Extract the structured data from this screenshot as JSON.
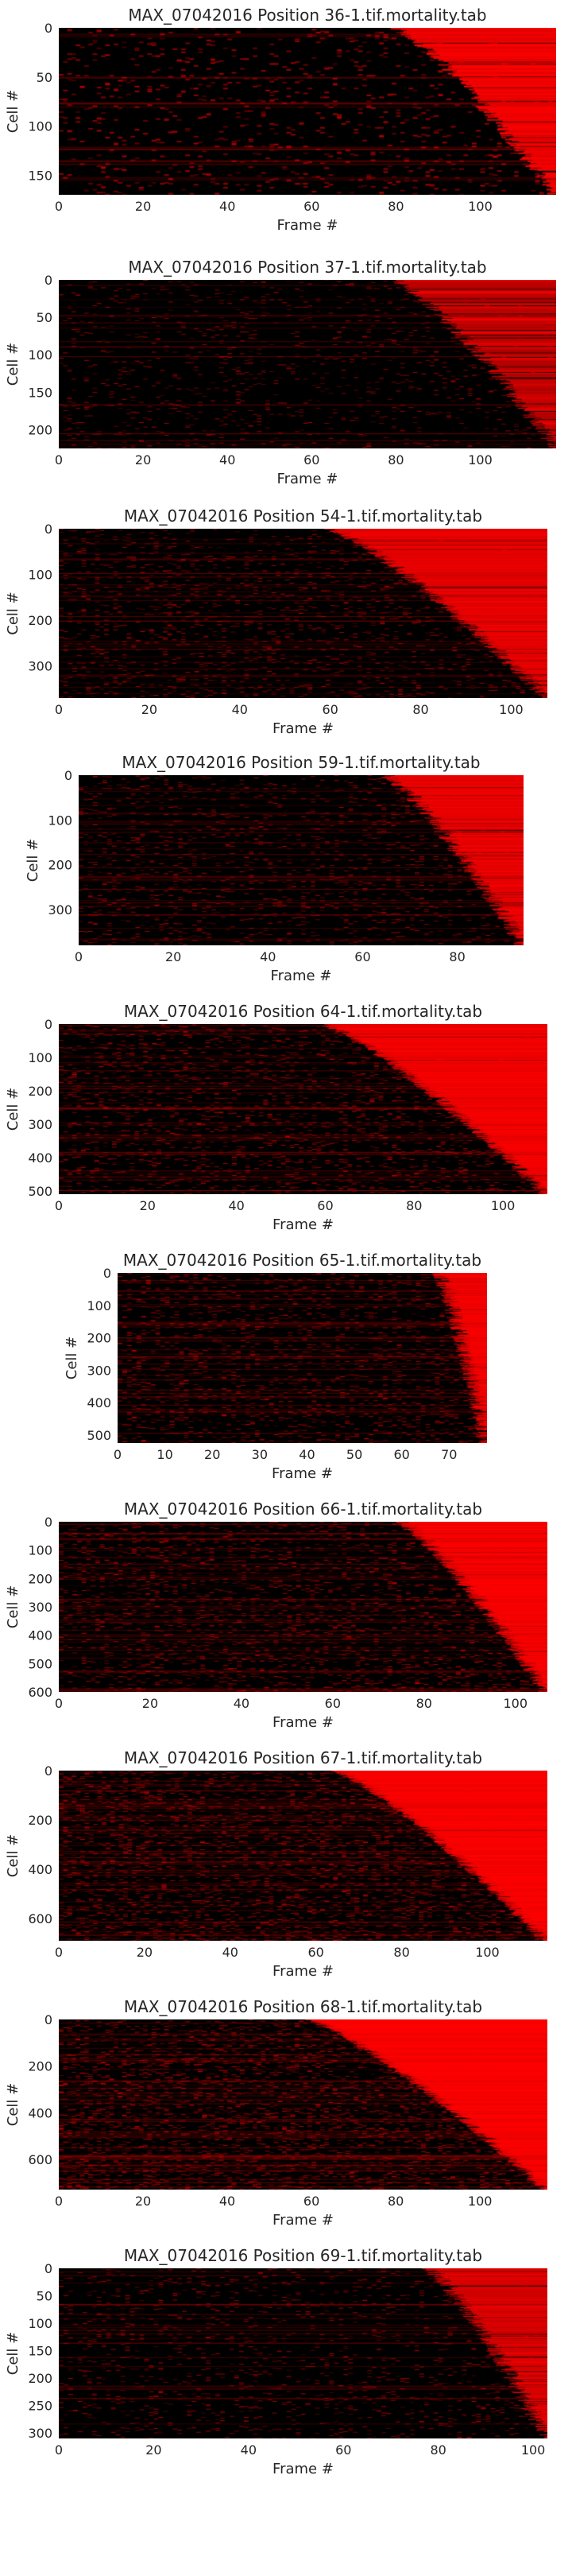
{
  "figure": {
    "panels": [
      {
        "title": "MAX_07042016 Position 36-1.tif.mortality.tab",
        "xlabel": "Frame #",
        "ylabel": "Cell #"
      },
      {
        "title": "MAX_07042016 Position 37-1.tif.mortality.tab",
        "xlabel": "Frame #",
        "ylabel": "Cell #"
      },
      {
        "title": "MAX_07042016 Position 54-1.tif.mortality.tab",
        "xlabel": "Frame #",
        "ylabel": "Cell #"
      },
      {
        "title": "MAX_07042016 Position 59-1.tif.mortality.tab",
        "xlabel": "Frame #",
        "ylabel": "Cell #"
      },
      {
        "title": "MAX_07042016 Position 64-1.tif.mortality.tab",
        "xlabel": "Frame #",
        "ylabel": "Cell #"
      },
      {
        "title": "MAX_07042016 Position 65-1.tif.mortality.tab",
        "xlabel": "Frame #",
        "ylabel": "Cell #"
      },
      {
        "title": "MAX_07042016 Position 66-1.tif.mortality.tab",
        "xlabel": "Frame #",
        "ylabel": "Cell #"
      },
      {
        "title": "MAX_07042016 Position 67-1.tif.mortality.tab",
        "xlabel": "Frame #",
        "ylabel": "Cell #"
      },
      {
        "title": "MAX_07042016 Position 68-1.tif.mortality.tab",
        "xlabel": "Frame #",
        "ylabel": "Cell #"
      },
      {
        "title": "MAX_07042016 Position 69-1.tif.mortality.tab",
        "xlabel": "Frame #",
        "ylabel": "Cell #"
      }
    ]
  },
  "chart_data": [
    {
      "type": "heatmap",
      "title": "MAX_07042016 Position 36-1.tif.mortality.tab",
      "xlabel": "Frame #",
      "ylabel": "Cell #",
      "frames": 118,
      "cells": 170,
      "xlim": [
        0,
        118
      ],
      "ylim": [
        170,
        0
      ],
      "xticks": [
        0,
        20,
        40,
        60,
        80,
        100
      ],
      "yticks": [
        0,
        50,
        100,
        150
      ],
      "onset_range": [
        80,
        118
      ],
      "colormap": [
        "#000000",
        "#ff0000"
      ],
      "grid": false
    },
    {
      "type": "heatmap",
      "title": "MAX_07042016 Position 37-1.tif.mortality.tab",
      "xlabel": "Frame #",
      "ylabel": "Cell #",
      "frames": 118,
      "cells": 225,
      "xlim": [
        0,
        118
      ],
      "ylim": [
        225,
        0
      ],
      "xticks": [
        0,
        20,
        40,
        60,
        80,
        100
      ],
      "yticks": [
        0,
        50,
        100,
        150,
        200
      ],
      "onset_range": [
        80,
        118
      ],
      "colormap": [
        "#000000",
        "#ff0000"
      ],
      "grid": false
    },
    {
      "type": "heatmap",
      "title": "MAX_07042016 Position 54-1.tif.mortality.tab",
      "xlabel": "Frame #",
      "ylabel": "Cell #",
      "frames": 108,
      "cells": 370,
      "xlim": [
        0,
        108
      ],
      "ylim": [
        370,
        0
      ],
      "xticks": [
        0,
        20,
        40,
        60,
        80,
        100
      ],
      "yticks": [
        0,
        100,
        200,
        300
      ],
      "onset_range": [
        60,
        108
      ],
      "colormap": [
        "#000000",
        "#ff0000"
      ],
      "grid": false
    },
    {
      "type": "heatmap",
      "title": "MAX_07042016 Position 59-1.tif.mortality.tab",
      "xlabel": "Frame #",
      "ylabel": "Cell #",
      "frames": 94,
      "cells": 380,
      "xlim": [
        0,
        94
      ],
      "ylim": [
        380,
        0
      ],
      "xticks": [
        0,
        20,
        40,
        60,
        80
      ],
      "yticks": [
        0,
        100,
        200,
        300
      ],
      "onset_range": [
        65,
        94
      ],
      "colormap": [
        "#000000",
        "#ff0000"
      ],
      "grid": false
    },
    {
      "type": "heatmap",
      "title": "MAX_07042016 Position 64-1.tif.mortality.tab",
      "xlabel": "Frame #",
      "ylabel": "Cell #",
      "frames": 110,
      "cells": 510,
      "xlim": [
        0,
        110
      ],
      "ylim": [
        510,
        0
      ],
      "xticks": [
        0,
        20,
        40,
        60,
        80,
        100
      ],
      "yticks": [
        0,
        100,
        200,
        300,
        400,
        500
      ],
      "onset_range": [
        60,
        110
      ],
      "colormap": [
        "#000000",
        "#ff0000"
      ],
      "grid": false
    },
    {
      "type": "heatmap",
      "title": "MAX_07042016 Position 65-1.tif.mortality.tab",
      "xlabel": "Frame #",
      "ylabel": "Cell #",
      "frames": 78,
      "cells": 525,
      "xlim": [
        0,
        78
      ],
      "ylim": [
        525,
        0
      ],
      "xticks": [
        0,
        10,
        20,
        30,
        40,
        50,
        60,
        70
      ],
      "yticks": [
        0,
        100,
        200,
        300,
        400,
        500
      ],
      "onset_range": [
        68,
        78
      ],
      "colormap": [
        "#000000",
        "#ff0000"
      ],
      "grid": false
    },
    {
      "type": "heatmap",
      "title": "MAX_07042016 Position 66-1.tif.mortality.tab",
      "xlabel": "Frame #",
      "ylabel": "Cell #",
      "frames": 107,
      "cells": 600,
      "xlim": [
        0,
        107
      ],
      "ylim": [
        600,
        0
      ],
      "xticks": [
        0,
        20,
        40,
        60,
        80,
        100
      ],
      "yticks": [
        0,
        100,
        200,
        300,
        400,
        500,
        600
      ],
      "onset_range": [
        75,
        107
      ],
      "colormap": [
        "#000000",
        "#ff0000"
      ],
      "grid": false
    },
    {
      "type": "heatmap",
      "title": "MAX_07042016 Position 67-1.tif.mortality.tab",
      "xlabel": "Frame #",
      "ylabel": "Cell #",
      "frames": 114,
      "cells": 690,
      "xlim": [
        0,
        114
      ],
      "ylim": [
        690,
        0
      ],
      "xticks": [
        0,
        20,
        40,
        60,
        80,
        100
      ],
      "yticks": [
        0,
        200,
        400,
        600
      ],
      "onset_range": [
        65,
        114
      ],
      "colormap": [
        "#000000",
        "#ff0000"
      ],
      "grid": false
    },
    {
      "type": "heatmap",
      "title": "MAX_07042016 Position 68-1.tif.mortality.tab",
      "xlabel": "Frame #",
      "ylabel": "Cell #",
      "frames": 116,
      "cells": 730,
      "xlim": [
        0,
        116
      ],
      "ylim": [
        730,
        0
      ],
      "xticks": [
        0,
        20,
        40,
        60,
        80,
        100
      ],
      "yticks": [
        0,
        200,
        400,
        600
      ],
      "onset_range": [
        60,
        116
      ],
      "colormap": [
        "#000000",
        "#ff0000"
      ],
      "grid": false
    },
    {
      "type": "heatmap",
      "title": "MAX_07042016 Position 69-1.tif.mortality.tab",
      "xlabel": "Frame #",
      "ylabel": "Cell #",
      "frames": 103,
      "cells": 310,
      "xlim": [
        0,
        103
      ],
      "ylim": [
        310,
        0
      ],
      "xticks": [
        0,
        20,
        40,
        60,
        80,
        100
      ],
      "yticks": [
        0,
        50,
        100,
        150,
        200,
        250,
        300
      ],
      "onset_range": [
        78,
        103
      ],
      "colormap": [
        "#000000",
        "#ff0000"
      ],
      "grid": false
    }
  ]
}
